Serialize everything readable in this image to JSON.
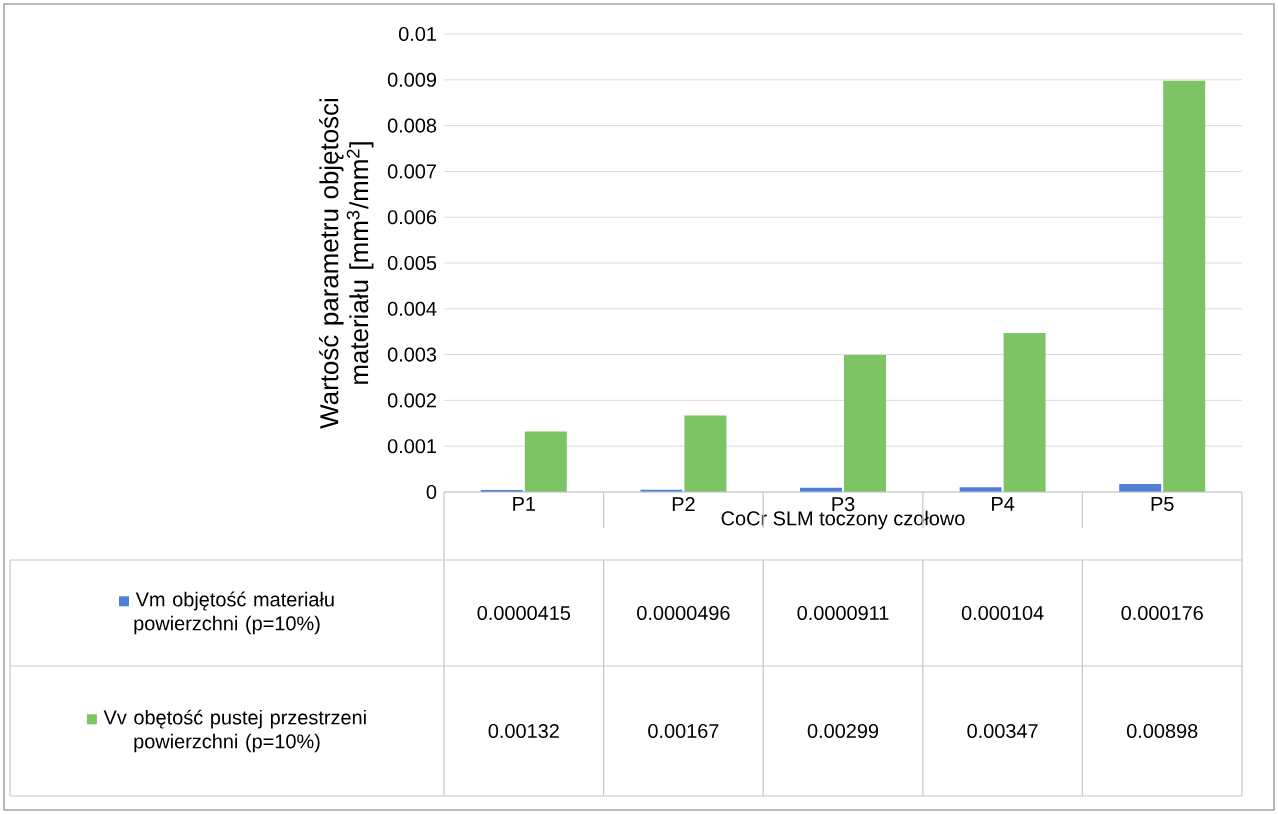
{
  "chart_data": {
    "type": "bar",
    "ylabel": "Wartość parametru objętości materiału [mm$^{3}$/mm$^{2}$]",
    "xlabel": "CoCr SLM toczony czołowo",
    "categories": [
      "P1",
      "P2",
      "P3",
      "P4",
      "P5"
    ],
    "series": [
      {
        "name": "Vm objętość materiału powierzchni (p=10%)",
        "color": "#4f7fd6",
        "values": [
          4.15e-05,
          4.96e-05,
          9.11e-05,
          0.000104,
          0.000176
        ],
        "value_labels": [
          "0.0000415",
          "0.0000496",
          "0.0000911",
          "0.000104",
          "0.000176"
        ]
      },
      {
        "name": "Vv obętość pustej przestrzeni powierzchni (p=10%)",
        "color": "#7cc464",
        "values": [
          0.00132,
          0.00167,
          0.00299,
          0.00347,
          0.00898
        ],
        "value_labels": [
          "0.00132",
          "0.00167",
          "0.00299",
          "0.00347",
          "0.00898"
        ]
      }
    ],
    "ylim": [
      0,
      0.01
    ],
    "yticks": [
      0,
      0.001,
      0.002,
      0.003,
      0.004,
      0.005,
      0.006,
      0.007,
      0.008,
      0.009,
      0.01
    ],
    "grid": "y",
    "legend": "bottom"
  }
}
